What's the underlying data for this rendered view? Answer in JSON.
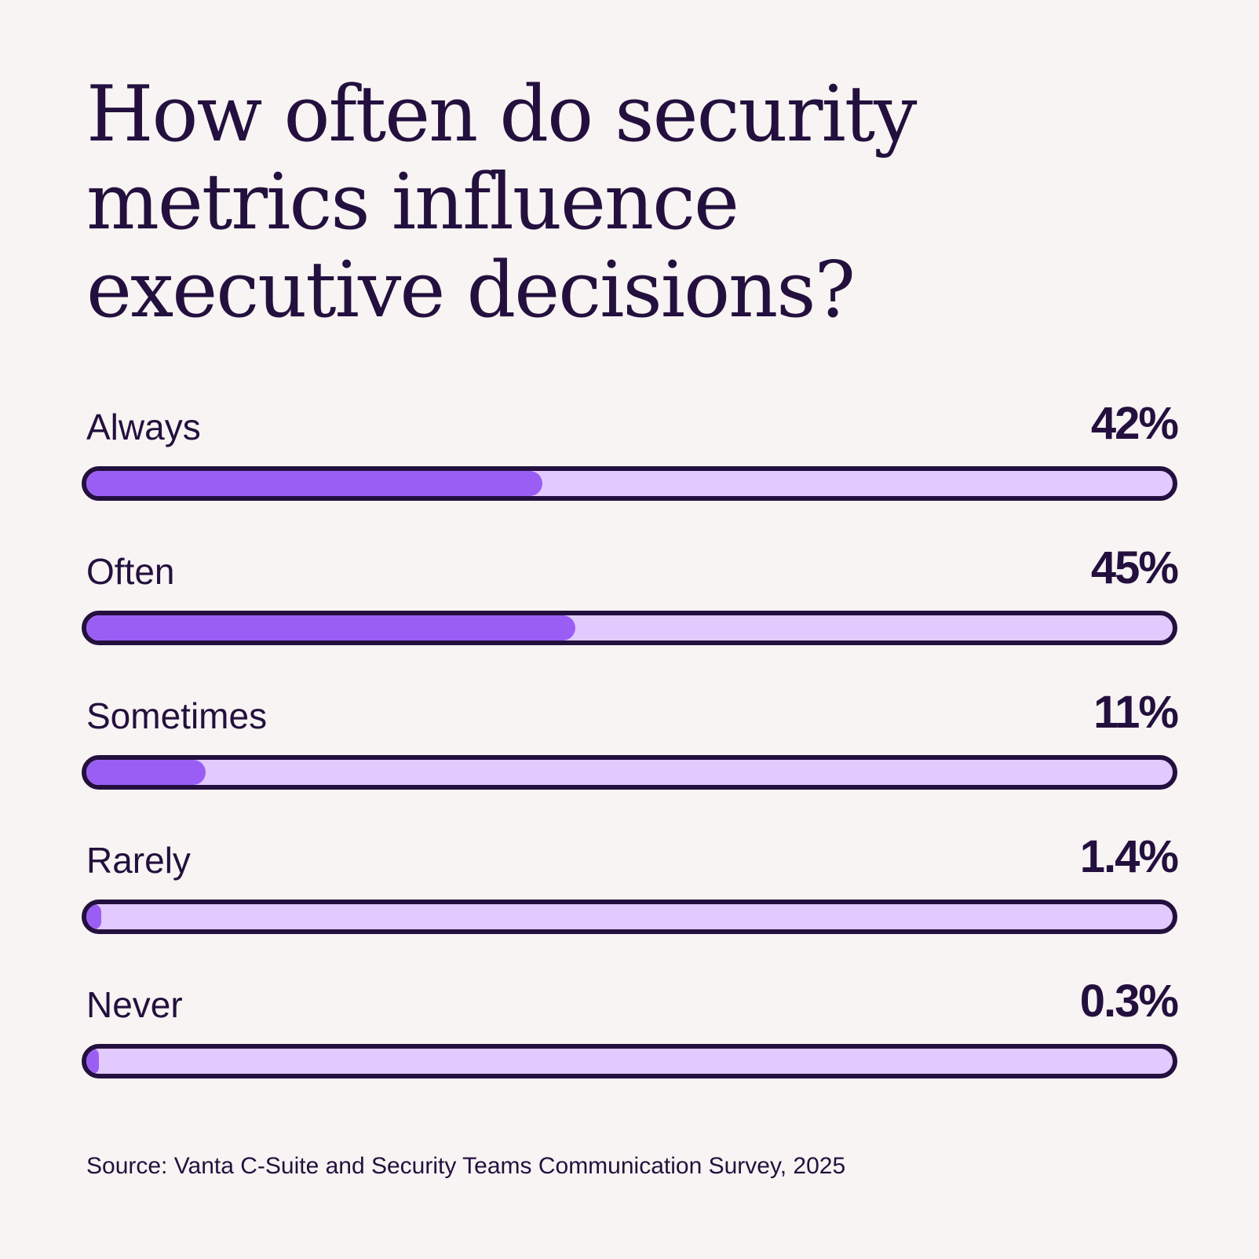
{
  "colors": {
    "background": "#f7f4f3",
    "text": "#24103e",
    "track": "#e2c9fe",
    "fill": "#9b5ef5",
    "outline": "#24103e"
  },
  "chart_data": {
    "type": "bar",
    "orientation": "horizontal",
    "title_lines": [
      "How often do security",
      "metrics influence",
      "executive decisions?"
    ],
    "categories": [
      "Always",
      "Often",
      "Sometimes",
      "Rarely",
      "Never"
    ],
    "values": [
      42,
      45,
      11,
      1.4,
      0.3
    ],
    "value_labels": [
      "42%",
      "45%",
      "11%",
      "1.4%",
      "0.3%"
    ],
    "xlim": [
      0,
      100
    ],
    "grid": false,
    "source": "Source: Vanta C-Suite and Security Teams Communication Survey, 2025"
  }
}
